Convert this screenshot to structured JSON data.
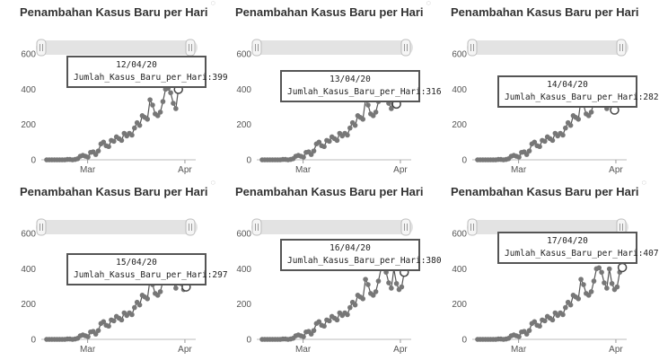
{
  "colors": {
    "line": "#555555",
    "point": "#777777",
    "slider_bg": "#e3e3e3",
    "slider_handle": "#f5f5f5"
  },
  "panels": [
    {
      "title": "Penambahan Kasus Baru per Hari",
      "tooltip_date": "12/04/20",
      "tooltip_label": "Jumlah_Kasus_Baru_per_Hari:399"
    },
    {
      "title": "Penambahan Kasus Baru per Hari",
      "tooltip_date": "13/04/20",
      "tooltip_label": "Jumlah_Kasus_Baru_per_Hari:316"
    },
    {
      "title": "Penambahan Kasus Baru per Hari",
      "tooltip_date": "14/04/20",
      "tooltip_label": "Jumlah_Kasus_Baru_per_Hari:282"
    },
    {
      "title": "Penambahan Kasus Baru per Hari",
      "tooltip_date": "15/04/20",
      "tooltip_label": "Jumlah_Kasus_Baru_per_Hari:297"
    },
    {
      "title": "Penambahan Kasus Baru per Hari",
      "tooltip_date": "16/04/20",
      "tooltip_label": "Jumlah_Kasus_Baru_per_Hari:380"
    },
    {
      "title": "Penambahan Kasus Baru per Hari",
      "tooltip_date": "17/04/20",
      "tooltip_label": "Jumlah_Kasus_Baru_per_Hari:407"
    }
  ],
  "chart_data": [
    {
      "type": "line",
      "title": "Penambahan Kasus Baru per Hari",
      "xlabel": "",
      "ylabel": "",
      "x_ticks": [
        "Mar",
        "Apr"
      ],
      "y_ticks": [
        0,
        200,
        400,
        600
      ],
      "ylim": [
        0,
        600
      ],
      "grid": false,
      "highlight": {
        "date": "12/04/20",
        "value": 399
      },
      "values": [
        0,
        0,
        0,
        0,
        0,
        0,
        0,
        0,
        2,
        2,
        0,
        2,
        6,
        20,
        25,
        20,
        15,
        42,
        45,
        30,
        50,
        90,
        100,
        80,
        75,
        110,
        105,
        130,
        120,
        110,
        150,
        135,
        150,
        140,
        180,
        210,
        195,
        250,
        240,
        230,
        340,
        310,
        260,
        250,
        270,
        330,
        400,
        405,
        380,
        320,
        290,
        399
      ]
    },
    {
      "type": "line",
      "title": "Penambahan Kasus Baru per Hari",
      "xlabel": "",
      "ylabel": "",
      "x_ticks": [
        "Mar",
        "Apr"
      ],
      "y_ticks": [
        0,
        200,
        400,
        600
      ],
      "ylim": [
        0,
        600
      ],
      "grid": false,
      "highlight": {
        "date": "13/04/20",
        "value": 316
      },
      "values": [
        0,
        0,
        0,
        0,
        0,
        0,
        0,
        0,
        2,
        2,
        0,
        2,
        6,
        20,
        25,
        20,
        15,
        42,
        45,
        30,
        50,
        90,
        100,
        80,
        75,
        110,
        105,
        130,
        120,
        110,
        150,
        135,
        150,
        140,
        180,
        210,
        195,
        250,
        240,
        230,
        340,
        310,
        260,
        250,
        270,
        330,
        400,
        405,
        380,
        320,
        290,
        399,
        316
      ]
    },
    {
      "type": "line",
      "title": "Penambahan Kasus Baru per Hari",
      "xlabel": "",
      "ylabel": "",
      "x_ticks": [
        "Mar",
        "Apr"
      ],
      "y_ticks": [
        0,
        200,
        400,
        600
      ],
      "ylim": [
        0,
        600
      ],
      "grid": false,
      "highlight": {
        "date": "14/04/20",
        "value": 282
      },
      "values": [
        0,
        0,
        0,
        0,
        0,
        0,
        0,
        0,
        2,
        2,
        0,
        2,
        6,
        20,
        25,
        20,
        15,
        42,
        45,
        30,
        50,
        90,
        100,
        80,
        75,
        110,
        105,
        130,
        120,
        110,
        150,
        135,
        150,
        140,
        180,
        210,
        195,
        250,
        240,
        230,
        340,
        310,
        260,
        250,
        270,
        330,
        400,
        405,
        380,
        320,
        290,
        399,
        316,
        282
      ]
    },
    {
      "type": "line",
      "title": "Penambahan Kasus Baru per Hari",
      "xlabel": "",
      "ylabel": "",
      "x_ticks": [
        "Mar",
        "Apr"
      ],
      "y_ticks": [
        0,
        200,
        400,
        600
      ],
      "ylim": [
        0,
        600
      ],
      "grid": false,
      "highlight": {
        "date": "15/04/20",
        "value": 297
      },
      "values": [
        0,
        0,
        0,
        0,
        0,
        0,
        0,
        0,
        2,
        2,
        0,
        2,
        6,
        20,
        25,
        20,
        15,
        42,
        45,
        30,
        50,
        90,
        100,
        80,
        75,
        110,
        105,
        130,
        120,
        110,
        150,
        135,
        150,
        140,
        180,
        210,
        195,
        250,
        240,
        230,
        340,
        310,
        260,
        250,
        270,
        330,
        400,
        405,
        380,
        320,
        290,
        399,
        316,
        282,
        297
      ]
    },
    {
      "type": "line",
      "title": "Penambahan Kasus Baru per Hari",
      "xlabel": "",
      "ylabel": "",
      "x_ticks": [
        "Mar",
        "Apr"
      ],
      "y_ticks": [
        0,
        200,
        400,
        600
      ],
      "ylim": [
        0,
        600
      ],
      "grid": false,
      "highlight": {
        "date": "16/04/20",
        "value": 380
      },
      "values": [
        0,
        0,
        0,
        0,
        0,
        0,
        0,
        0,
        2,
        2,
        0,
        2,
        6,
        20,
        25,
        20,
        15,
        42,
        45,
        30,
        50,
        90,
        100,
        80,
        75,
        110,
        105,
        130,
        120,
        110,
        150,
        135,
        150,
        140,
        180,
        210,
        195,
        250,
        240,
        230,
        340,
        310,
        260,
        250,
        270,
        330,
        400,
        405,
        380,
        320,
        290,
        399,
        316,
        282,
        297,
        380
      ]
    },
    {
      "type": "line",
      "title": "Penambahan Kasus Baru per Hari",
      "xlabel": "",
      "ylabel": "",
      "x_ticks": [
        "Mar",
        "Apr"
      ],
      "y_ticks": [
        0,
        200,
        400,
        600
      ],
      "ylim": [
        0,
        600
      ],
      "grid": false,
      "highlight": {
        "date": "17/04/20",
        "value": 407
      },
      "values": [
        0,
        0,
        0,
        0,
        0,
        0,
        0,
        0,
        2,
        2,
        0,
        2,
        6,
        20,
        25,
        20,
        15,
        42,
        45,
        30,
        50,
        90,
        100,
        80,
        75,
        110,
        105,
        130,
        120,
        110,
        150,
        135,
        150,
        140,
        180,
        210,
        195,
        250,
        240,
        230,
        340,
        310,
        260,
        250,
        270,
        330,
        400,
        405,
        380,
        320,
        290,
        399,
        316,
        282,
        297,
        380,
        407
      ]
    }
  ]
}
